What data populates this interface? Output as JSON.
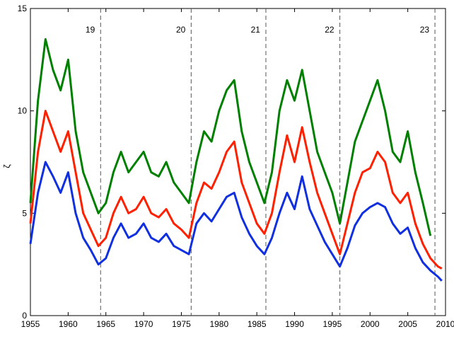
{
  "chart_data": {
    "type": "line",
    "y_label": "ζ",
    "x": [
      1955,
      1956,
      1957,
      1958,
      1959,
      1960,
      1961,
      1962,
      1963,
      1964,
      1965,
      1966,
      1967,
      1968,
      1969,
      1970,
      1971,
      1972,
      1973,
      1974,
      1975,
      1976,
      1977,
      1978,
      1979,
      1980,
      1981,
      1982,
      1983,
      1984,
      1985,
      1986,
      1987,
      1988,
      1989,
      1990,
      1991,
      1992,
      1993,
      1994,
      1995,
      1996,
      1997,
      1998,
      1999,
      2000,
      2001,
      2002,
      2003,
      2004,
      2005,
      2006,
      2007,
      2008,
      2009,
      2009.5
    ],
    "series": [
      {
        "color": "#008000",
        "values": [
          5.5,
          10.5,
          13.5,
          12,
          11,
          12.5,
          9,
          7,
          6,
          5,
          5.5,
          7,
          8,
          7,
          7.5,
          8,
          7,
          6.8,
          7.5,
          6.5,
          6,
          5.5,
          7.5,
          9,
          8.5,
          10,
          11,
          11.5,
          9,
          7.5,
          6.5,
          5.5,
          7,
          10,
          11.5,
          10.5,
          12,
          10,
          8,
          7,
          6,
          4.5,
          6.5,
          8.5,
          9.5,
          10.5,
          11.5,
          10,
          8,
          7.5,
          9,
          7,
          5.5,
          3.9,
          null,
          null
        ]
      },
      {
        "color": "#ff2000",
        "values": [
          4.5,
          8,
          10,
          9,
          8,
          9,
          7,
          5,
          4.2,
          3.4,
          3.8,
          5,
          5.8,
          5,
          5.2,
          5.8,
          5,
          4.8,
          5.2,
          4.5,
          4.2,
          3.8,
          5.5,
          6.5,
          6.2,
          7,
          8,
          8.5,
          6.5,
          5.5,
          4.5,
          4,
          5,
          7,
          8.8,
          7.5,
          9.2,
          7.5,
          6,
          5,
          4,
          3,
          4.5,
          6,
          7,
          7.2,
          8,
          7.5,
          6,
          5.5,
          6,
          4.5,
          3.5,
          2.8,
          2.4,
          2.3
        ]
      },
      {
        "color": "#1030e0",
        "values": [
          3.5,
          6,
          7.5,
          6.8,
          6,
          7,
          5,
          3.8,
          3.2,
          2.5,
          2.8,
          3.8,
          4.5,
          3.8,
          4,
          4.5,
          3.8,
          3.6,
          4,
          3.4,
          3.2,
          3,
          4.5,
          5,
          4.6,
          5.2,
          5.8,
          6,
          4.8,
          4,
          3.4,
          3,
          3.8,
          5,
          6,
          5.2,
          6.8,
          5.2,
          4.4,
          3.6,
          3,
          2.4,
          3.3,
          4.4,
          5,
          5.3,
          5.5,
          5.3,
          4.5,
          4,
          4.3,
          3.3,
          2.6,
          2.2,
          1.9,
          1.7
        ]
      }
    ],
    "cycles": [
      {
        "label": "19",
        "x": 1964.3
      },
      {
        "label": "20",
        "x": 1976.3
      },
      {
        "label": "21",
        "x": 1986.2
      },
      {
        "label": "22",
        "x": 1996.0
      },
      {
        "label": "23",
        "x": 2008.6
      }
    ],
    "xlim": [
      1955,
      2010
    ],
    "xticks": [
      1955,
      1960,
      1965,
      1970,
      1975,
      1980,
      1985,
      1990,
      1995,
      2000,
      2005,
      2010
    ],
    "ylim": [
      0,
      15
    ],
    "yticks": [
      0,
      5,
      10,
      15
    ]
  }
}
